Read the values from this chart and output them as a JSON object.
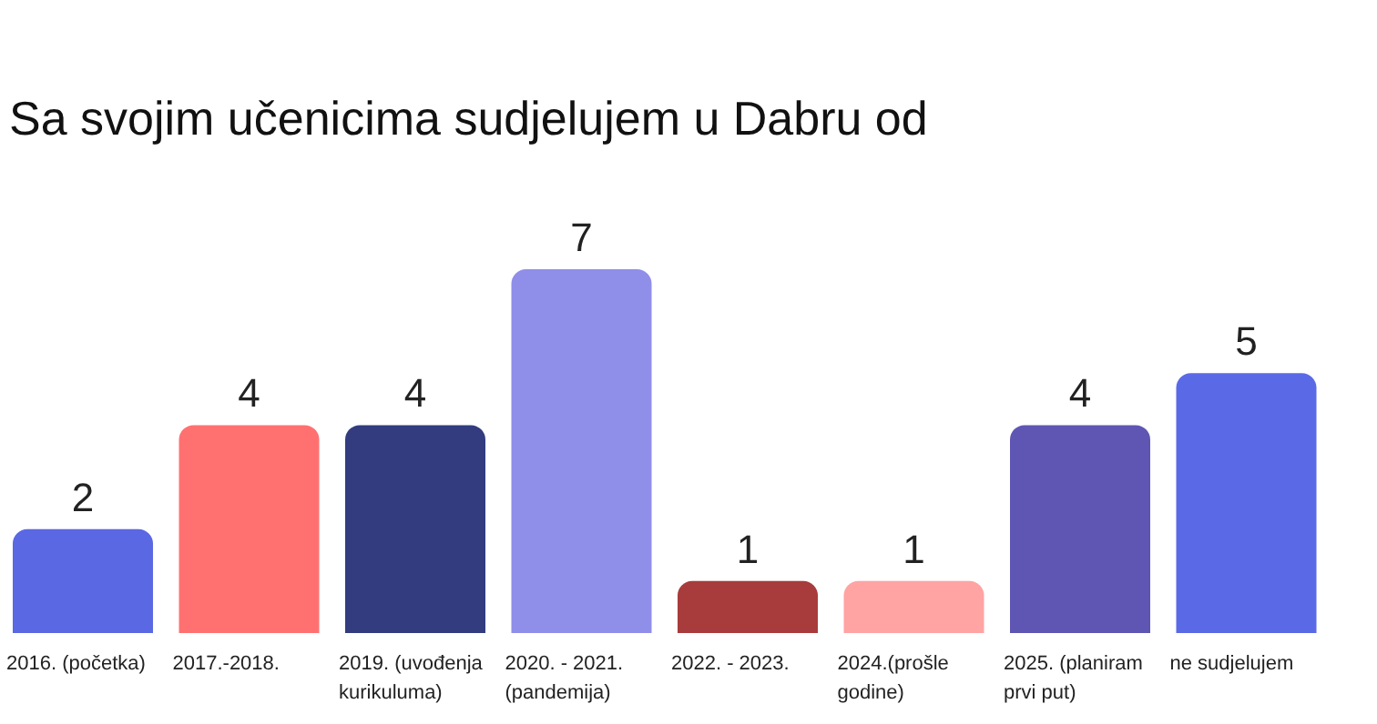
{
  "chart_data": {
    "type": "bar",
    "title": "Sa svojim učenicima sudjelujem u  Dabru od",
    "categories": [
      "2016. (početka)",
      "2017.-2018.",
      "2019. (uvođenja kurikuluma)",
      "2020. - 2021. (pandemija)",
      "2022. - 2023.",
      "2024.(prošle godine)",
      "2025. (planiram prvi put)",
      "ne sudjelujem"
    ],
    "values": [
      2,
      4,
      4,
      7,
      1,
      1,
      4,
      5
    ],
    "colors": [
      "#5a68e4",
      "#ff7171",
      "#323c7e",
      "#8f8ee9",
      "#a83b3b",
      "#ffa3a3",
      "#5e56b2",
      "#5a6ae6"
    ],
    "data_labels": true,
    "grid": false,
    "legend": false
  }
}
